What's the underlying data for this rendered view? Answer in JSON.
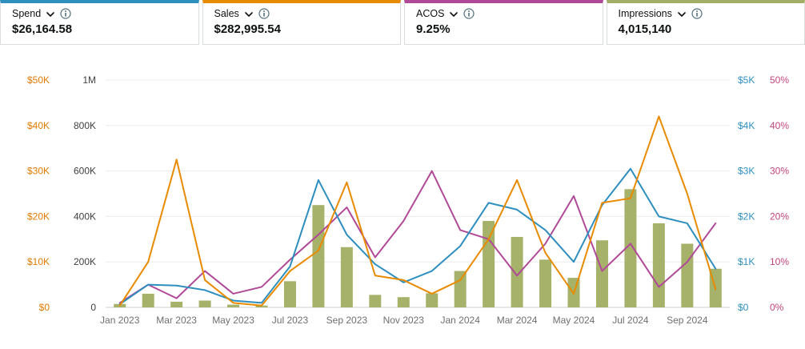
{
  "cards": [
    {
      "label": "Spend",
      "value": "$26,164.58",
      "color": "#2e8fbf"
    },
    {
      "label": "Sales",
      "value": "$282,995.54",
      "color": "#e88b00"
    },
    {
      "label": "ACOS",
      "value": "9.25%",
      "color": "#b04a98"
    },
    {
      "label": "Impressions",
      "value": "4,015,140",
      "color": "#a2ae66"
    }
  ],
  "icons": {
    "chevron": "chevron-down",
    "info": "info-circle"
  },
  "chart_data": {
    "type": "combo",
    "title": "",
    "legend": "none",
    "grid": true,
    "categories": [
      "Jan 2023",
      "Feb 2023",
      "Mar 2023",
      "Apr 2023",
      "May 2023",
      "Jun 2023",
      "Jul 2023",
      "Aug 2023",
      "Sep 2023",
      "Oct 2023",
      "Nov 2023",
      "Dec 2023",
      "Jan 2024",
      "Feb 2024",
      "Mar 2024",
      "Apr 2024",
      "May 2024",
      "Jun 2024",
      "Jul 2024",
      "Aug 2024",
      "Sep 2024",
      "Oct 2024"
    ],
    "x_tick_labels": [
      "Jan 2023",
      "Mar 2023",
      "May 2023",
      "Jul 2023",
      "Sep 2023",
      "Nov 2023",
      "Jan 2024",
      "Mar 2024",
      "May 2024",
      "Jul 2024",
      "Sep 2024"
    ],
    "axes": {
      "sales_usd": {
        "label_side": "left-outer",
        "color": "#e07b00",
        "min": 0,
        "max": 50000,
        "ticks": [
          "$0",
          "$10K",
          "$20K",
          "$30K",
          "$40K",
          "$50K"
        ]
      },
      "impressions": {
        "label_side": "left-inner",
        "color": "#3f3f3f",
        "min": 0,
        "max": 1000000,
        "ticks": [
          "0",
          "200K",
          "400K",
          "600K",
          "800K",
          "1M"
        ]
      },
      "spend_usd": {
        "label_side": "right-inner",
        "color": "#2e8fbf",
        "min": 0,
        "max": 5000,
        "ticks": [
          "$0",
          "$1K",
          "$2K",
          "$3K",
          "$4K",
          "$5K"
        ]
      },
      "acos_pct": {
        "label_side": "right-outer",
        "color": "#c0457c",
        "min": 0,
        "max": 50,
        "ticks": [
          "0%",
          "10%",
          "20%",
          "30%",
          "40%",
          "50%"
        ]
      }
    },
    "series": [
      {
        "name": "Impressions",
        "type": "bar",
        "axis": "impressions",
        "color": "#a6b169",
        "values": [
          15000,
          60000,
          25000,
          30000,
          12000,
          8000,
          115000,
          450000,
          265000,
          55000,
          45000,
          62000,
          160000,
          380000,
          310000,
          210000,
          130000,
          295000,
          520000,
          370000,
          280000,
          170000
        ]
      },
      {
        "name": "ACOS",
        "type": "line",
        "axis": "acos_pct",
        "color": "#b04a98",
        "values": [
          1,
          5,
          2,
          8,
          3,
          4.5,
          10.5,
          16,
          22,
          11,
          19,
          30,
          17,
          15,
          7,
          14,
          24.5,
          8,
          14,
          4.5,
          10,
          18.5
        ]
      },
      {
        "name": "Spend",
        "type": "line",
        "axis": "spend_usd",
        "color": "#2e8fbf",
        "values": [
          70,
          500,
          480,
          380,
          150,
          100,
          900,
          2800,
          1600,
          950,
          550,
          800,
          1350,
          2300,
          2150,
          1700,
          1000,
          2250,
          3050,
          2000,
          1850,
          850
        ]
      },
      {
        "name": "Sales",
        "type": "line",
        "axis": "sales_usd",
        "color": "#e88b00",
        "values": [
          400,
          10000,
          32500,
          6000,
          1000,
          400,
          8000,
          12500,
          27500,
          7000,
          6000,
          3000,
          6000,
          15000,
          28000,
          12000,
          3000,
          23000,
          24000,
          42000,
          25000,
          4000
        ]
      }
    ]
  }
}
